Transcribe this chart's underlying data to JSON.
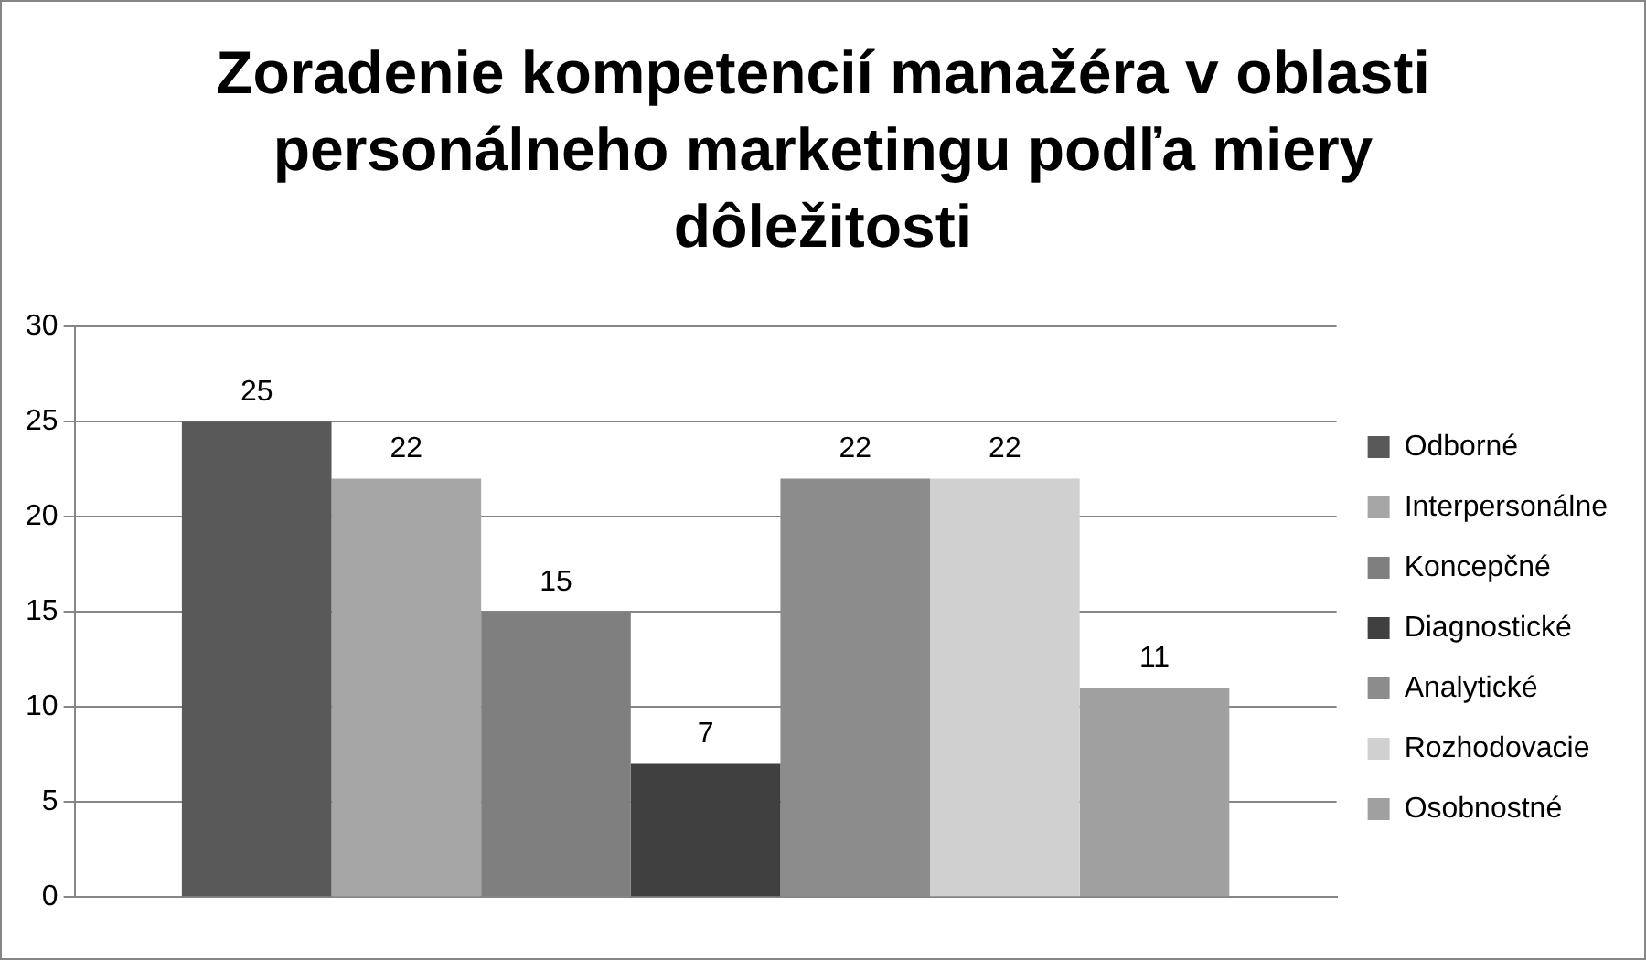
{
  "chart_data": {
    "type": "bar",
    "title": "Zoradenie kompetencií manažéra v oblasti personálneho marketingu podľa miery dôležitosti",
    "categories": [
      null
    ],
    "series": [
      {
        "name": "Odborné",
        "color": "#595959",
        "values": [
          25
        ]
      },
      {
        "name": "Interpersonálne",
        "color": "#a6a6a6",
        "values": [
          22
        ]
      },
      {
        "name": "Koncepčné",
        "color": "#7f7f7f",
        "values": [
          15
        ]
      },
      {
        "name": "Diagnostické",
        "color": "#404040",
        "values": [
          7
        ]
      },
      {
        "name": "Analytické",
        "color": "#8c8c8c",
        "values": [
          22
        ]
      },
      {
        "name": "Rozhodovacie",
        "color": "#d0d0d0",
        "values": [
          22
        ]
      },
      {
        "name": "Osobnostné",
        "color": "#a0a0a0",
        "values": [
          11
        ]
      }
    ],
    "ylim": [
      0,
      30
    ],
    "yticks": [
      0,
      5,
      10,
      15,
      20,
      25,
      30
    ],
    "grid": "y",
    "legend": "right",
    "data_labels": true
  }
}
